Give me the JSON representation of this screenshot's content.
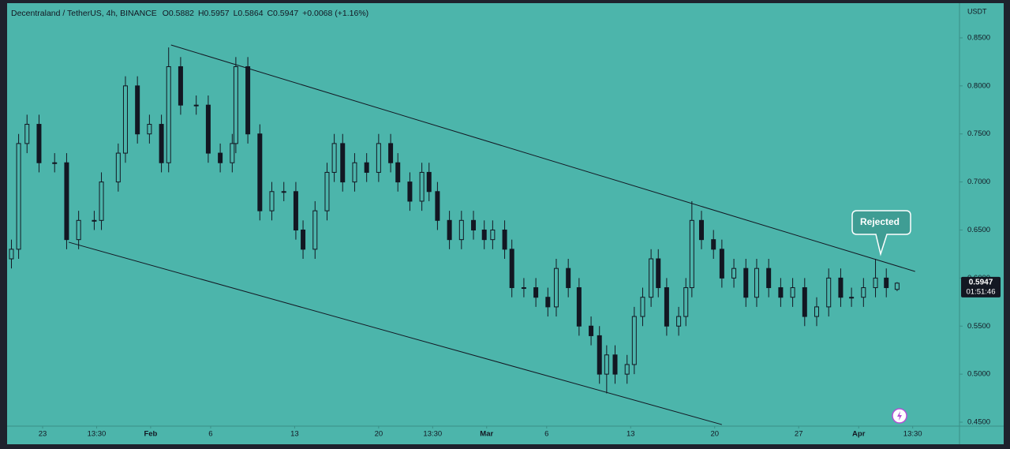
{
  "chart_data": {
    "type": "candlestick",
    "header": {
      "symbol": "Decentraland / TetherUS, 4h, BINANCE",
      "open": "O0.5882",
      "high": "H0.5957",
      "low": "L0.5864",
      "close": "C0.5947",
      "change": "+0.0068 (+1.16%)"
    },
    "y_axis_unit": "USDT",
    "last_price_label": "0.5947",
    "countdown": "01:51:46",
    "annotation": "Rejected",
    "x": [
      -2.6,
      -2,
      -1.3,
      -0.3,
      1,
      2,
      3,
      4.3,
      4.9,
      6.3,
      6.9,
      7.9,
      8.9,
      9.9,
      10.5,
      11.5,
      12.8,
      13.8,
      14.8,
      15.8,
      16.1,
      17.1,
      18.1,
      19.1,
      20.1,
      21.1,
      21.7,
      22.7,
      23.7,
      24.3,
      25,
      26,
      27,
      28,
      29,
      29.6,
      30.6,
      31.6,
      32.2,
      32.9,
      33.9,
      34.9,
      35.9,
      36.8,
      37.5,
      38.5,
      39.1,
      40.1,
      41.1,
      42.1,
      42.8,
      43.8,
      44.7,
      45.7,
      46.4,
      47,
      47.7,
      48.7,
      49.3,
      50,
      50.7,
      51.3,
      52,
      53,
      53.6,
      54.1,
      54.9,
      55.9,
      56.6,
      57.6,
      58.6,
      59.5,
      60.5,
      61.5,
      62.5,
      63.5,
      64.5,
      65.5,
      66.5,
      67.4,
      68.4,
      69.4,
      70.3,
      71.2
    ],
    "open": [
      0.62,
      0.63,
      0.74,
      0.76,
      0.72,
      0.72,
      0.64,
      0.66,
      0.66,
      0.7,
      0.73,
      0.8,
      0.75,
      0.76,
      0.72,
      0.82,
      0.78,
      0.78,
      0.73,
      0.72,
      0.74,
      0.82,
      0.75,
      0.67,
      0.69,
      0.69,
      0.65,
      0.63,
      0.67,
      0.71,
      0.74,
      0.7,
      0.72,
      0.71,
      0.74,
      0.72,
      0.7,
      0.68,
      0.71,
      0.69,
      0.66,
      0.64,
      0.66,
      0.65,
      0.64,
      0.65,
      0.63,
      0.59,
      0.59,
      0.58,
      0.57,
      0.61,
      0.59,
      0.55,
      0.54,
      0.5,
      0.52,
      0.5,
      0.51,
      0.56,
      0.58,
      0.62,
      0.59,
      0.55,
      0.56,
      0.59,
      0.66,
      0.64,
      0.63,
      0.6,
      0.61,
      0.58,
      0.61,
      0.59,
      0.58,
      0.59,
      0.56,
      0.57,
      0.6,
      0.58,
      0.58,
      0.59,
      0.6,
      0.5882
    ],
    "high": [
      0.64,
      0.75,
      0.77,
      0.77,
      0.73,
      0.73,
      0.67,
      0.67,
      0.71,
      0.74,
      0.81,
      0.81,
      0.77,
      0.77,
      0.84,
      0.83,
      0.79,
      0.79,
      0.74,
      0.75,
      0.83,
      0.83,
      0.76,
      0.7,
      0.7,
      0.7,
      0.66,
      0.68,
      0.72,
      0.75,
      0.75,
      0.73,
      0.73,
      0.75,
      0.75,
      0.73,
      0.71,
      0.72,
      0.72,
      0.7,
      0.67,
      0.67,
      0.67,
      0.66,
      0.66,
      0.66,
      0.64,
      0.6,
      0.6,
      0.59,
      0.62,
      0.62,
      0.6,
      0.56,
      0.55,
      0.53,
      0.53,
      0.52,
      0.57,
      0.59,
      0.63,
      0.63,
      0.6,
      0.57,
      0.6,
      0.68,
      0.67,
      0.65,
      0.64,
      0.62,
      0.62,
      0.62,
      0.62,
      0.6,
      0.6,
      0.6,
      0.58,
      0.61,
      0.61,
      0.59,
      0.6,
      0.62,
      0.61,
      0.5957
    ],
    "low": [
      0.61,
      0.62,
      0.73,
      0.71,
      0.71,
      0.63,
      0.63,
      0.65,
      0.65,
      0.69,
      0.72,
      0.74,
      0.74,
      0.71,
      0.71,
      0.77,
      0.77,
      0.72,
      0.71,
      0.71,
      0.73,
      0.74,
      0.66,
      0.66,
      0.68,
      0.64,
      0.62,
      0.62,
      0.66,
      0.7,
      0.69,
      0.69,
      0.7,
      0.7,
      0.71,
      0.69,
      0.67,
      0.67,
      0.68,
      0.65,
      0.63,
      0.63,
      0.64,
      0.63,
      0.63,
      0.62,
      0.58,
      0.58,
      0.57,
      0.56,
      0.56,
      0.58,
      0.54,
      0.53,
      0.49,
      0.48,
      0.49,
      0.49,
      0.5,
      0.55,
      0.57,
      0.58,
      0.54,
      0.54,
      0.55,
      0.58,
      0.63,
      0.62,
      0.59,
      0.59,
      0.57,
      0.57,
      0.58,
      0.57,
      0.57,
      0.55,
      0.55,
      0.56,
      0.57,
      0.57,
      0.57,
      0.58,
      0.58,
      0.5864
    ],
    "close": [
      0.63,
      0.74,
      0.76,
      0.72,
      0.72,
      0.64,
      0.66,
      0.66,
      0.7,
      0.73,
      0.8,
      0.75,
      0.76,
      0.72,
      0.82,
      0.78,
      0.78,
      0.73,
      0.72,
      0.74,
      0.82,
      0.75,
      0.67,
      0.69,
      0.69,
      0.65,
      0.63,
      0.67,
      0.71,
      0.74,
      0.7,
      0.72,
      0.71,
      0.74,
      0.72,
      0.7,
      0.68,
      0.71,
      0.69,
      0.66,
      0.64,
      0.66,
      0.65,
      0.64,
      0.65,
      0.63,
      0.59,
      0.59,
      0.58,
      0.57,
      0.61,
      0.59,
      0.55,
      0.54,
      0.5,
      0.52,
      0.5,
      0.51,
      0.56,
      0.58,
      0.62,
      0.59,
      0.55,
      0.56,
      0.59,
      0.66,
      0.64,
      0.63,
      0.6,
      0.61,
      0.58,
      0.61,
      0.59,
      0.58,
      0.59,
      0.56,
      0.57,
      0.6,
      0.58,
      0.58,
      0.59,
      0.6,
      0.59,
      0.5947
    ],
    "trendlines": [
      [
        [
          10.7,
          0.8426
        ],
        [
          72.7,
          0.6069
        ]
      ],
      [
        [
          2.17,
          0.6373
        ],
        [
          56.6,
          0.4475
        ]
      ]
    ],
    "xlim": [
      -2.96,
      76.4
    ],
    "ylim": [
      0.4459,
      0.8861
    ],
    "xticks": [
      {
        "value": 0,
        "label": "23"
      },
      {
        "value": 4.5,
        "label": "13:30"
      },
      {
        "value": 9,
        "label": "Feb"
      },
      {
        "value": 14,
        "label": "6"
      },
      {
        "value": 21,
        "label": "13"
      },
      {
        "value": 28,
        "label": "20"
      },
      {
        "value": 32.5,
        "label": "13:30"
      },
      {
        "value": 37,
        "label": "Mar"
      },
      {
        "value": 42,
        "label": "6"
      },
      {
        "value": 49,
        "label": "13"
      },
      {
        "value": 56,
        "label": "20"
      },
      {
        "value": 63,
        "label": "27"
      },
      {
        "value": 68,
        "label": "Apr"
      },
      {
        "value": 72.5,
        "label": "13:30"
      }
    ],
    "yticks": [
      {
        "value": 0.45,
        "label": "0.4500"
      },
      {
        "value": 0.5,
        "label": "0.5000"
      },
      {
        "value": 0.55,
        "label": "0.5500"
      },
      {
        "value": 0.6,
        "label": "0.6000"
      },
      {
        "value": 0.65,
        "label": "0.6500"
      },
      {
        "value": 0.7,
        "label": "0.7000"
      },
      {
        "value": 0.75,
        "label": "0.7500"
      },
      {
        "value": 0.8,
        "label": "0.8000"
      },
      {
        "value": 0.85,
        "label": "0.8500"
      }
    ],
    "up_color": "#4cb5ab",
    "down_color": "#131722",
    "line_color": "#131722"
  }
}
